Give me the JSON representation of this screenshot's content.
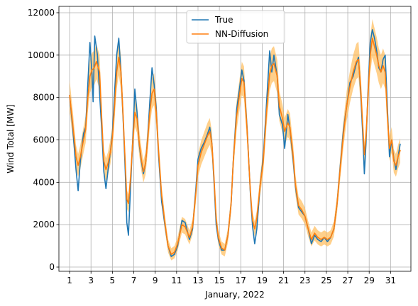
{
  "chart_data": {
    "type": "line",
    "title": "",
    "xlabel": "January, 2022",
    "ylabel": "Wind Total [MW]",
    "xlim": [
      0.0,
      32.9
    ],
    "ylim": [
      -200,
      12300
    ],
    "xticks": [
      1,
      3,
      5,
      7,
      9,
      11,
      13,
      15,
      17,
      19,
      21,
      23,
      25,
      27,
      29,
      31
    ],
    "yticks": [
      0,
      2000,
      4000,
      6000,
      8000,
      10000,
      12000
    ],
    "grid": true,
    "legend_position": "top-center",
    "band": {
      "series": "NN-Diffusion",
      "color": "#ffb74d",
      "opacity": 0.65
    },
    "series": [
      {
        "name": "True",
        "color": "#1f77b4",
        "points": [
          [
            1.0,
            8100
          ],
          [
            1.3,
            6500
          ],
          [
            1.6,
            4600
          ],
          [
            1.8,
            3600
          ],
          [
            2.0,
            5000
          ],
          [
            2.3,
            6300
          ],
          [
            2.5,
            6600
          ],
          [
            2.7,
            8600
          ],
          [
            2.9,
            10600
          ],
          [
            3.1,
            9100
          ],
          [
            3.2,
            7800
          ],
          [
            3.35,
            10900
          ],
          [
            3.6,
            10000
          ],
          [
            3.8,
            8200
          ],
          [
            4.0,
            6500
          ],
          [
            4.2,
            4500
          ],
          [
            4.4,
            3700
          ],
          [
            4.6,
            4600
          ],
          [
            4.8,
            5400
          ],
          [
            5.0,
            6300
          ],
          [
            5.2,
            8200
          ],
          [
            5.4,
            10000
          ],
          [
            5.6,
            10800
          ],
          [
            5.8,
            9200
          ],
          [
            6.0,
            7000
          ],
          [
            6.2,
            4500
          ],
          [
            6.35,
            2100
          ],
          [
            6.5,
            1500
          ],
          [
            6.7,
            3800
          ],
          [
            6.9,
            6000
          ],
          [
            7.1,
            8400
          ],
          [
            7.3,
            7300
          ],
          [
            7.5,
            5800
          ],
          [
            7.7,
            5000
          ],
          [
            7.9,
            4400
          ],
          [
            8.1,
            4900
          ],
          [
            8.3,
            6100
          ],
          [
            8.5,
            7800
          ],
          [
            8.7,
            9400
          ],
          [
            8.9,
            8600
          ],
          [
            9.1,
            7500
          ],
          [
            9.3,
            5400
          ],
          [
            9.6,
            3100
          ],
          [
            9.9,
            2000
          ],
          [
            10.2,
            1000
          ],
          [
            10.5,
            500
          ],
          [
            10.8,
            600
          ],
          [
            11.1,
            1000
          ],
          [
            11.5,
            2200
          ],
          [
            11.8,
            2100
          ],
          [
            12.2,
            1300
          ],
          [
            12.5,
            1800
          ],
          [
            12.8,
            3700
          ],
          [
            13.0,
            5100
          ],
          [
            13.3,
            5600
          ],
          [
            13.6,
            5900
          ],
          [
            13.9,
            6300
          ],
          [
            14.1,
            6600
          ],
          [
            14.3,
            5800
          ],
          [
            14.5,
            4000
          ],
          [
            14.7,
            2000
          ],
          [
            14.9,
            1300
          ],
          [
            15.2,
            800
          ],
          [
            15.5,
            800
          ],
          [
            15.8,
            1500
          ],
          [
            16.1,
            3000
          ],
          [
            16.3,
            5000
          ],
          [
            16.6,
            7400
          ],
          [
            16.9,
            8500
          ],
          [
            17.1,
            9300
          ],
          [
            17.3,
            8800
          ],
          [
            17.6,
            6500
          ],
          [
            17.9,
            3400
          ],
          [
            18.1,
            1900
          ],
          [
            18.3,
            1100
          ],
          [
            18.5,
            1800
          ],
          [
            18.8,
            3800
          ],
          [
            19.1,
            5200
          ],
          [
            19.4,
            7700
          ],
          [
            19.7,
            10200
          ],
          [
            19.9,
            9200
          ],
          [
            20.1,
            10000
          ],
          [
            20.4,
            9000
          ],
          [
            20.6,
            7200
          ],
          [
            20.9,
            6700
          ],
          [
            21.1,
            5600
          ],
          [
            21.4,
            7200
          ],
          [
            21.6,
            6500
          ],
          [
            21.9,
            5000
          ],
          [
            22.1,
            3800
          ],
          [
            22.4,
            2800
          ],
          [
            22.7,
            2600
          ],
          [
            23.0,
            2400
          ],
          [
            23.3,
            1800
          ],
          [
            23.6,
            1100
          ],
          [
            23.9,
            1500
          ],
          [
            24.2,
            1300
          ],
          [
            24.5,
            1200
          ],
          [
            24.8,
            1400
          ],
          [
            25.1,
            1200
          ],
          [
            25.4,
            1400
          ],
          [
            25.7,
            1800
          ],
          [
            26.0,
            3000
          ],
          [
            26.3,
            4800
          ],
          [
            26.6,
            6500
          ],
          [
            26.9,
            7600
          ],
          [
            27.2,
            8700
          ],
          [
            27.5,
            9000
          ],
          [
            27.8,
            9600
          ],
          [
            28.0,
            9900
          ],
          [
            28.2,
            8300
          ],
          [
            28.4,
            6200
          ],
          [
            28.55,
            4400
          ],
          [
            28.7,
            5800
          ],
          [
            28.9,
            8400
          ],
          [
            29.1,
            10600
          ],
          [
            29.3,
            11200
          ],
          [
            29.5,
            10800
          ],
          [
            29.7,
            10200
          ],
          [
            29.9,
            9400
          ],
          [
            30.1,
            9200
          ],
          [
            30.3,
            9800
          ],
          [
            30.5,
            10000
          ],
          [
            30.7,
            7600
          ],
          [
            30.9,
            5200
          ],
          [
            31.1,
            6000
          ],
          [
            31.3,
            5100
          ],
          [
            31.5,
            4600
          ],
          [
            31.7,
            5200
          ],
          [
            31.9,
            5800
          ]
        ]
      },
      {
        "name": "NN-Diffusion",
        "color": "#ff7f0e",
        "points": [
          [
            1.0,
            8100
          ],
          [
            1.3,
            6700
          ],
          [
            1.6,
            5200
          ],
          [
            1.8,
            4800
          ],
          [
            2.0,
            5200
          ],
          [
            2.3,
            6000
          ],
          [
            2.5,
            6500
          ],
          [
            2.7,
            8000
          ],
          [
            2.9,
            9000
          ],
          [
            3.1,
            9300
          ],
          [
            3.3,
            9400
          ],
          [
            3.5,
            9700
          ],
          [
            3.8,
            9200
          ],
          [
            4.0,
            7000
          ],
          [
            4.2,
            5000
          ],
          [
            4.4,
            4600
          ],
          [
            4.6,
            4900
          ],
          [
            4.8,
            5400
          ],
          [
            5.0,
            6100
          ],
          [
            5.2,
            7600
          ],
          [
            5.4,
            9200
          ],
          [
            5.6,
            9900
          ],
          [
            5.8,
            9200
          ],
          [
            6.0,
            7100
          ],
          [
            6.2,
            4900
          ],
          [
            6.35,
            3200
          ],
          [
            6.5,
            3000
          ],
          [
            6.7,
            4200
          ],
          [
            6.9,
            5900
          ],
          [
            7.1,
            7300
          ],
          [
            7.3,
            7000
          ],
          [
            7.5,
            5900
          ],
          [
            7.7,
            5100
          ],
          [
            7.9,
            4500
          ],
          [
            8.1,
            4900
          ],
          [
            8.3,
            6000
          ],
          [
            8.5,
            7300
          ],
          [
            8.7,
            8200
          ],
          [
            8.9,
            8400
          ],
          [
            9.1,
            7300
          ],
          [
            9.3,
            5600
          ],
          [
            9.6,
            3400
          ],
          [
            9.9,
            2100
          ],
          [
            10.2,
            1000
          ],
          [
            10.5,
            600
          ],
          [
            10.8,
            700
          ],
          [
            11.1,
            1100
          ],
          [
            11.5,
            2000
          ],
          [
            11.8,
            1900
          ],
          [
            12.2,
            1400
          ],
          [
            12.5,
            1900
          ],
          [
            12.8,
            3500
          ],
          [
            13.0,
            4800
          ],
          [
            13.3,
            5400
          ],
          [
            13.6,
            5800
          ],
          [
            13.9,
            6200
          ],
          [
            14.1,
            6400
          ],
          [
            14.3,
            5800
          ],
          [
            14.5,
            4200
          ],
          [
            14.7,
            2300
          ],
          [
            14.9,
            1400
          ],
          [
            15.2,
            900
          ],
          [
            15.5,
            800
          ],
          [
            15.8,
            1500
          ],
          [
            16.1,
            3000
          ],
          [
            16.3,
            5000
          ],
          [
            16.6,
            7100
          ],
          [
            16.9,
            8200
          ],
          [
            17.1,
            8900
          ],
          [
            17.3,
            8700
          ],
          [
            17.6,
            6400
          ],
          [
            17.9,
            3500
          ],
          [
            18.1,
            2200
          ],
          [
            18.3,
            1800
          ],
          [
            18.5,
            2300
          ],
          [
            18.8,
            3800
          ],
          [
            19.1,
            5000
          ],
          [
            19.4,
            7300
          ],
          [
            19.7,
            9100
          ],
          [
            19.9,
            9500
          ],
          [
            20.1,
            9600
          ],
          [
            20.4,
            9000
          ],
          [
            20.6,
            7600
          ],
          [
            20.9,
            7000
          ],
          [
            21.1,
            6400
          ],
          [
            21.4,
            6800
          ],
          [
            21.6,
            6600
          ],
          [
            21.9,
            5200
          ],
          [
            22.1,
            3900
          ],
          [
            22.4,
            2900
          ],
          [
            22.7,
            2700
          ],
          [
            23.0,
            2400
          ],
          [
            23.3,
            1800
          ],
          [
            23.6,
            1300
          ],
          [
            23.9,
            1600
          ],
          [
            24.2,
            1400
          ],
          [
            24.5,
            1300
          ],
          [
            24.8,
            1400
          ],
          [
            25.1,
            1300
          ],
          [
            25.4,
            1400
          ],
          [
            25.7,
            1800
          ],
          [
            26.0,
            3000
          ],
          [
            26.3,
            4700
          ],
          [
            26.6,
            6300
          ],
          [
            26.9,
            7600
          ],
          [
            27.2,
            8500
          ],
          [
            27.5,
            9200
          ],
          [
            27.8,
            9700
          ],
          [
            28.0,
            9800
          ],
          [
            28.2,
            8500
          ],
          [
            28.4,
            6600
          ],
          [
            28.55,
            5300
          ],
          [
            28.7,
            6100
          ],
          [
            28.9,
            8200
          ],
          [
            29.1,
            10000
          ],
          [
            29.3,
            10800
          ],
          [
            29.5,
            10400
          ],
          [
            29.7,
            10000
          ],
          [
            29.9,
            9500
          ],
          [
            30.1,
            9200
          ],
          [
            30.3,
            9500
          ],
          [
            30.5,
            9200
          ],
          [
            30.7,
            7200
          ],
          [
            30.9,
            5600
          ],
          [
            31.1,
            6000
          ],
          [
            31.3,
            5000
          ],
          [
            31.5,
            4800
          ],
          [
            31.7,
            5200
          ],
          [
            31.9,
            5500
          ]
        ]
      }
    ]
  }
}
